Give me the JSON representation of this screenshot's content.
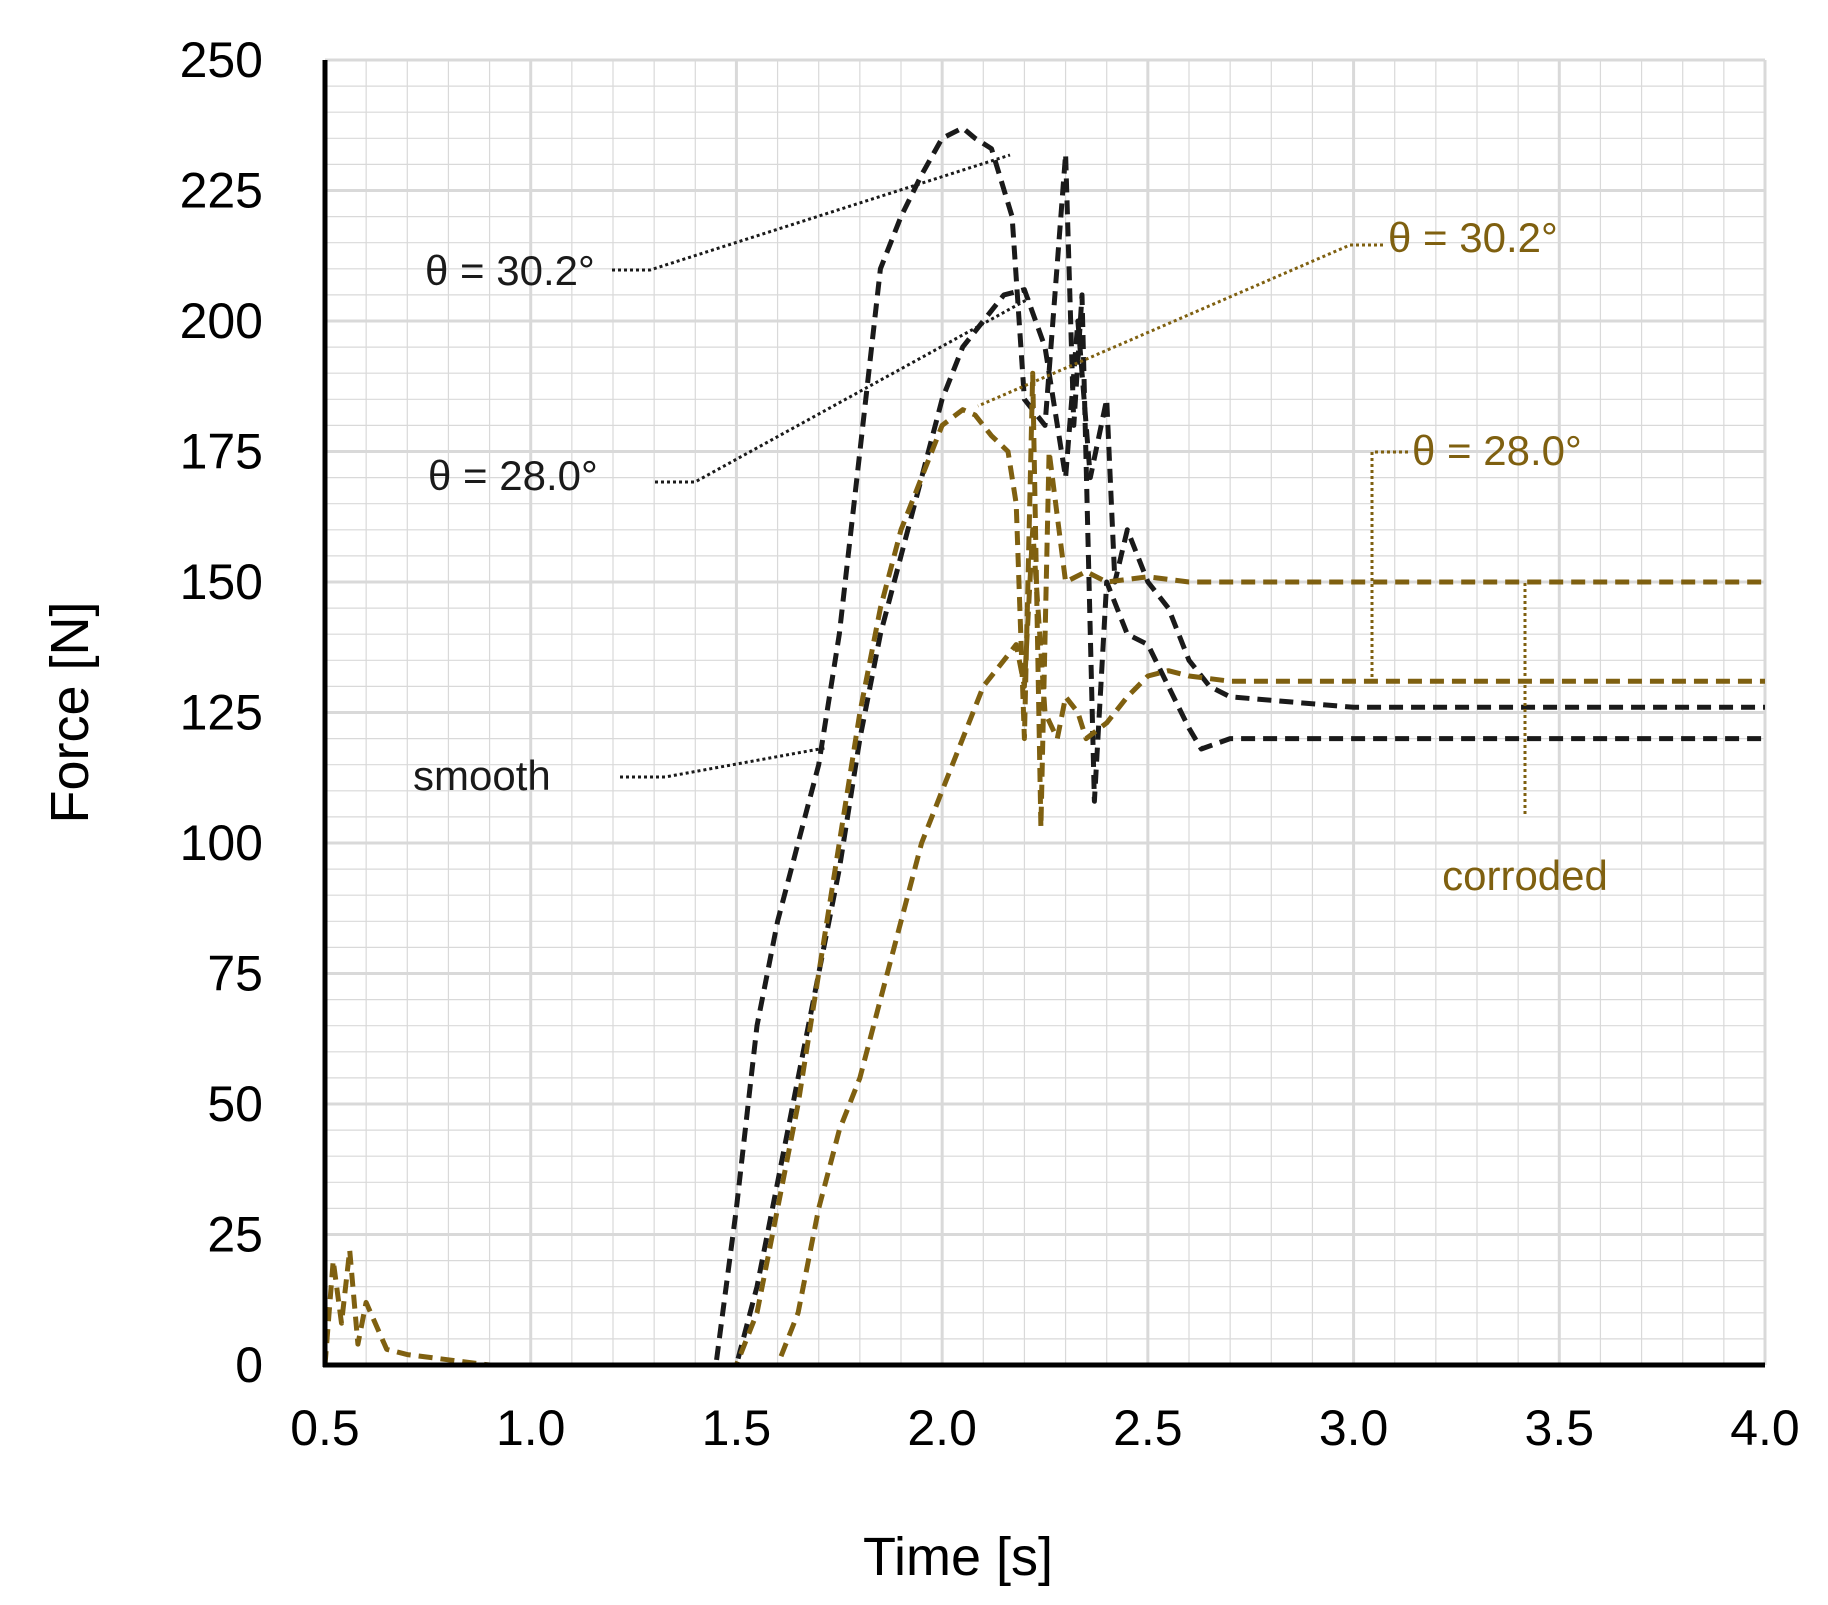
{
  "chart_data": {
    "type": "line",
    "title": "",
    "xlabel": "Time [s]",
    "ylabel": "Force [N]",
    "xlim": [
      0.5,
      4.0
    ],
    "ylim": [
      0,
      250
    ],
    "x_ticks": [
      "0.5",
      "1.0",
      "1.5",
      "2.0",
      "2.5",
      "3.0",
      "3.5",
      "4.0"
    ],
    "y_ticks": [
      "0",
      "25",
      "50",
      "75",
      "100",
      "125",
      "150",
      "175",
      "200",
      "225",
      "250"
    ],
    "grid": "major and minor",
    "colors": {
      "smooth": "#1a1a1a",
      "corroded": "#7f6010",
      "grid": "#d9d9d9"
    },
    "series": [
      {
        "name": "smooth, θ = 30.2°",
        "group": "smooth",
        "x": [
          0.5,
          1.0,
          1.45,
          1.5,
          1.55,
          1.6,
          1.65,
          1.7,
          1.75,
          1.8,
          1.85,
          1.9,
          1.95,
          2.0,
          2.05,
          2.08,
          2.12,
          2.17,
          2.2,
          2.25,
          2.3,
          2.32,
          2.34,
          2.37,
          2.4,
          2.45,
          2.5,
          2.55,
          2.6,
          2.63,
          2.7,
          3.0,
          3.5,
          4.0
        ],
        "y": [
          0,
          0,
          0,
          30,
          65,
          85,
          100,
          115,
          140,
          175,
          210,
          220,
          228,
          235,
          237,
          235,
          233,
          220,
          185,
          180,
          232,
          180,
          205,
          108,
          150,
          140,
          138,
          130,
          122,
          118,
          120,
          120,
          120,
          120
        ]
      },
      {
        "name": "smooth, θ = 28.0°",
        "group": "smooth",
        "x": [
          0.5,
          1.0,
          1.5,
          1.55,
          1.6,
          1.65,
          1.7,
          1.75,
          1.8,
          1.85,
          1.9,
          1.95,
          2.0,
          2.05,
          2.1,
          2.15,
          2.2,
          2.25,
          2.3,
          2.33,
          2.36,
          2.4,
          2.42,
          2.45,
          2.5,
          2.55,
          2.6,
          2.65,
          2.7,
          3.0,
          3.5,
          4.0
        ],
        "y": [
          0,
          0,
          0,
          15,
          35,
          55,
          75,
          95,
          120,
          140,
          155,
          170,
          185,
          195,
          200,
          205,
          206,
          195,
          170,
          200,
          170,
          185,
          150,
          160,
          150,
          145,
          135,
          130,
          128,
          126,
          126,
          126
        ]
      },
      {
        "name": "corroded, θ = 30.2°",
        "group": "corroded",
        "x": [
          0.5,
          0.52,
          0.54,
          0.56,
          0.58,
          0.6,
          0.65,
          0.7,
          0.8,
          0.9,
          1.0,
          1.5,
          1.55,
          1.6,
          1.65,
          1.7,
          1.75,
          1.8,
          1.85,
          1.9,
          1.95,
          2.0,
          2.05,
          2.08,
          2.12,
          2.16,
          2.18,
          2.2,
          2.22,
          2.24,
          2.26,
          2.3,
          2.35,
          2.4,
          2.5,
          2.6,
          3.0,
          3.5,
          4.0
        ],
        "y": [
          0,
          20,
          8,
          22,
          4,
          12,
          3,
          2,
          1,
          0,
          0,
          0,
          10,
          30,
          50,
          75,
          100,
          125,
          145,
          160,
          170,
          180,
          183,
          182,
          178,
          175,
          165,
          120,
          190,
          103,
          175,
          150,
          152,
          150,
          151,
          150,
          150,
          150,
          150
        ]
      },
      {
        "name": "corroded, θ = 28.0°",
        "group": "corroded",
        "x": [
          0.5,
          1.0,
          1.6,
          1.65,
          1.7,
          1.75,
          1.8,
          1.85,
          1.9,
          1.95,
          2.0,
          2.05,
          2.1,
          2.15,
          2.18,
          2.2,
          2.22,
          2.25,
          2.28,
          2.3,
          2.33,
          2.35,
          2.4,
          2.45,
          2.5,
          2.55,
          2.6,
          2.7,
          3.0,
          3.5,
          4.0
        ],
        "y": [
          0,
          0,
          0,
          10,
          30,
          45,
          55,
          70,
          85,
          100,
          110,
          120,
          130,
          135,
          138,
          130,
          160,
          125,
          120,
          128,
          125,
          120,
          123,
          128,
          132,
          133,
          132,
          131,
          131,
          131,
          131
        ]
      }
    ],
    "annotations": [
      {
        "text": "θ = 30.2°",
        "group": "smooth"
      },
      {
        "text": "θ = 28.0°",
        "group": "smooth"
      },
      {
        "text": "smooth",
        "group": "smooth"
      },
      {
        "text": "θ = 30.2°",
        "group": "corroded"
      },
      {
        "text": "θ = 28.0°",
        "group": "corroded"
      },
      {
        "text": "corroded",
        "group": "corroded"
      }
    ]
  }
}
